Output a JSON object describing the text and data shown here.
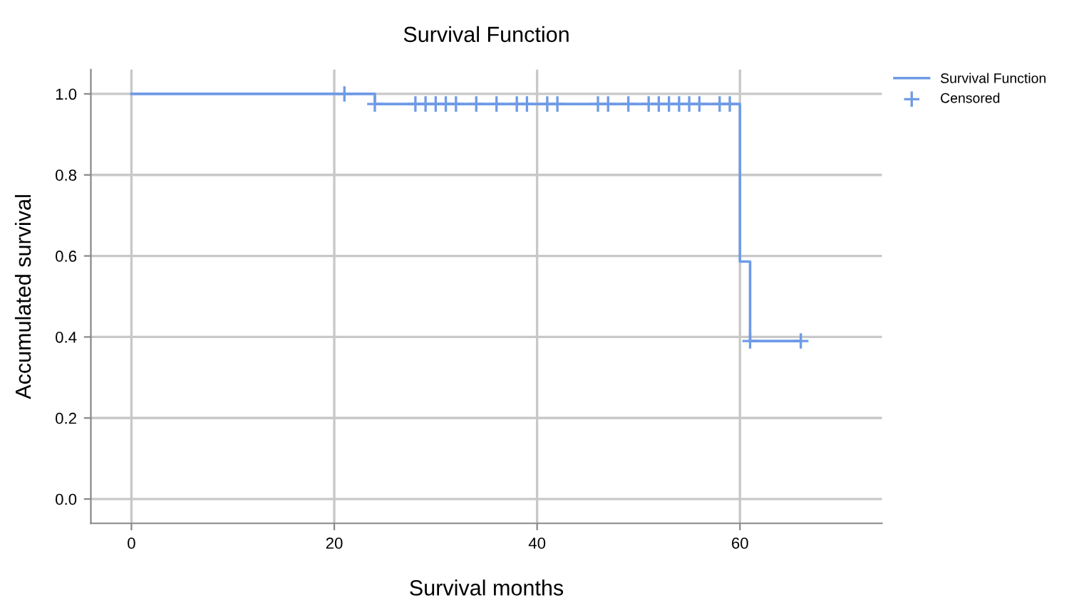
{
  "chart_data": {
    "type": "step",
    "title": "Survival Function",
    "xlabel": "Survival months",
    "ylabel": "Accumulated survival",
    "xlim": [
      -4,
      74
    ],
    "xticks": [
      0,
      20,
      40,
      60
    ],
    "ylim": [
      -0.06,
      1.06
    ],
    "yticks": [
      {
        "value": 0,
        "label": "0.0"
      },
      {
        "value": 0.2,
        "label": "0.2"
      },
      {
        "value": 0.4,
        "label": "0.4"
      },
      {
        "value": 0.6,
        "label": "0.6"
      },
      {
        "value": 0.8,
        "label": "0.8"
      },
      {
        "value": 1,
        "label": "1.0"
      }
    ],
    "grid": true,
    "legend": "top right",
    "series": [
      {
        "name": "Survival Function",
        "color": "#6f9be6",
        "x": [
          0,
          24,
          60,
          61,
          66
        ],
        "values": [
          1,
          0.975,
          0.586,
          0.39,
          0.39
        ]
      },
      {
        "name": "Censored",
        "type": "scatter",
        "marker": "cross",
        "color": "#6f9be6",
        "x": [
          21,
          24,
          28,
          29,
          30,
          31,
          32,
          34,
          36,
          38,
          39,
          41,
          42,
          46,
          47,
          49,
          51,
          52,
          53,
          54,
          55,
          56,
          58,
          59,
          61,
          66
        ],
        "values": [
          1,
          0.975,
          0.975,
          0.975,
          0.975,
          0.975,
          0.975,
          0.975,
          0.975,
          0.975,
          0.975,
          0.975,
          0.975,
          0.975,
          0.975,
          0.975,
          0.975,
          0.975,
          0.975,
          0.975,
          0.975,
          0.975,
          0.975,
          0.975,
          0.39,
          0.39
        ]
      }
    ]
  }
}
